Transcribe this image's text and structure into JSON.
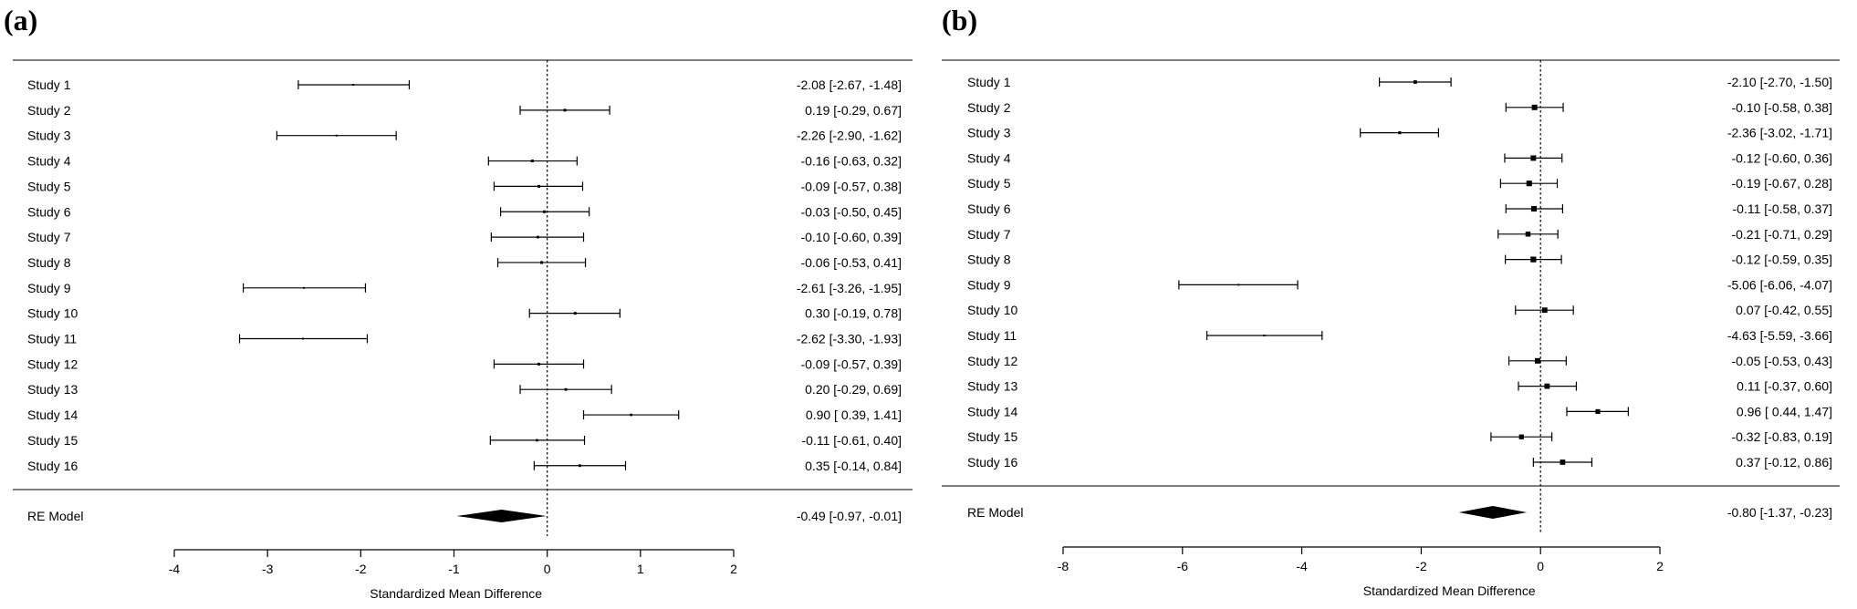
{
  "chart_data": [
    {
      "type": "forest",
      "panel_label": "(a)",
      "xlabel": "Standardized Mean Difference",
      "xlim": [
        -4,
        2
      ],
      "xticks": [
        -4,
        -3,
        -2,
        -1,
        0,
        1,
        2
      ],
      "reference_line": 0,
      "studies": [
        {
          "label": "Study 1",
          "est": -2.08,
          "lo": -2.67,
          "hi": -1.48,
          "text": "-2.08 [-2.67, -1.48]"
        },
        {
          "label": "Study 2",
          "est": 0.19,
          "lo": -0.29,
          "hi": 0.67,
          "text": "0.19 [-0.29,  0.67]"
        },
        {
          "label": "Study 3",
          "est": -2.26,
          "lo": -2.9,
          "hi": -1.62,
          "text": "-2.26 [-2.90, -1.62]"
        },
        {
          "label": "Study 4",
          "est": -0.16,
          "lo": -0.63,
          "hi": 0.32,
          "text": "-0.16 [-0.63,  0.32]"
        },
        {
          "label": "Study 5",
          "est": -0.09,
          "lo": -0.57,
          "hi": 0.38,
          "text": "-0.09 [-0.57,  0.38]"
        },
        {
          "label": "Study 6",
          "est": -0.03,
          "lo": -0.5,
          "hi": 0.45,
          "text": "-0.03 [-0.50,  0.45]"
        },
        {
          "label": "Study 7",
          "est": -0.1,
          "lo": -0.6,
          "hi": 0.39,
          "text": "-0.10 [-0.60,  0.39]"
        },
        {
          "label": "Study 8",
          "est": -0.06,
          "lo": -0.53,
          "hi": 0.41,
          "text": "-0.06 [-0.53,  0.41]"
        },
        {
          "label": "Study 9",
          "est": -2.61,
          "lo": -3.26,
          "hi": -1.95,
          "text": "-2.61 [-3.26, -1.95]"
        },
        {
          "label": "Study 10",
          "est": 0.3,
          "lo": -0.19,
          "hi": 0.78,
          "text": "0.30 [-0.19,  0.78]"
        },
        {
          "label": "Study 11",
          "est": -2.62,
          "lo": -3.3,
          "hi": -1.93,
          "text": "-2.62 [-3.30, -1.93]"
        },
        {
          "label": "Study 12",
          "est": -0.09,
          "lo": -0.57,
          "hi": 0.39,
          "text": "-0.09 [-0.57,  0.39]"
        },
        {
          "label": "Study 13",
          "est": 0.2,
          "lo": -0.29,
          "hi": 0.69,
          "text": "0.20 [-0.29,  0.69]"
        },
        {
          "label": "Study 14",
          "est": 0.9,
          "lo": 0.39,
          "hi": 1.41,
          "text": "0.90 [ 0.39,  1.41]"
        },
        {
          "label": "Study 15",
          "est": -0.11,
          "lo": -0.61,
          "hi": 0.4,
          "text": "-0.11 [-0.61,  0.40]"
        },
        {
          "label": "Study 16",
          "est": 0.35,
          "lo": -0.14,
          "hi": 0.84,
          "text": "0.35 [-0.14,  0.84]"
        }
      ],
      "summary": {
        "label": "RE Model",
        "est": -0.49,
        "lo": -0.97,
        "hi": -0.01,
        "text": "-0.49 [-0.97, -0.01]"
      }
    },
    {
      "type": "forest",
      "panel_label": "(b)",
      "xlabel": "Standardized Mean Difference",
      "xlim": [
        -8,
        2
      ],
      "xticks": [
        -8,
        -6,
        -4,
        -2,
        0,
        2
      ],
      "reference_line": 0,
      "studies": [
        {
          "label": "Study 1",
          "est": -2.1,
          "lo": -2.7,
          "hi": -1.5,
          "text": "-2.10 [-2.70, -1.50]"
        },
        {
          "label": "Study 2",
          "est": -0.1,
          "lo": -0.58,
          "hi": 0.38,
          "text": "-0.10 [-0.58,  0.38]"
        },
        {
          "label": "Study 3",
          "est": -2.36,
          "lo": -3.02,
          "hi": -1.71,
          "text": "-2.36 [-3.02, -1.71]"
        },
        {
          "label": "Study 4",
          "est": -0.12,
          "lo": -0.6,
          "hi": 0.36,
          "text": "-0.12 [-0.60,  0.36]"
        },
        {
          "label": "Study 5",
          "est": -0.19,
          "lo": -0.67,
          "hi": 0.28,
          "text": "-0.19 [-0.67,  0.28]"
        },
        {
          "label": "Study 6",
          "est": -0.11,
          "lo": -0.58,
          "hi": 0.37,
          "text": "-0.11 [-0.58,  0.37]"
        },
        {
          "label": "Study 7",
          "est": -0.21,
          "lo": -0.71,
          "hi": 0.29,
          "text": "-0.21 [-0.71,  0.29]"
        },
        {
          "label": "Study 8",
          "est": -0.12,
          "lo": -0.59,
          "hi": 0.35,
          "text": "-0.12 [-0.59,  0.35]"
        },
        {
          "label": "Study 9",
          "est": -5.06,
          "lo": -6.06,
          "hi": -4.07,
          "text": "-5.06 [-6.06, -4.07]"
        },
        {
          "label": "Study 10",
          "est": 0.07,
          "lo": -0.42,
          "hi": 0.55,
          "text": "0.07 [-0.42,  0.55]"
        },
        {
          "label": "Study 11",
          "est": -4.63,
          "lo": -5.59,
          "hi": -3.66,
          "text": "-4.63 [-5.59, -3.66]"
        },
        {
          "label": "Study 12",
          "est": -0.05,
          "lo": -0.53,
          "hi": 0.43,
          "text": "-0.05 [-0.53,  0.43]"
        },
        {
          "label": "Study 13",
          "est": 0.11,
          "lo": -0.37,
          "hi": 0.6,
          "text": "0.11 [-0.37,  0.60]"
        },
        {
          "label": "Study 14",
          "est": 0.96,
          "lo": 0.44,
          "hi": 1.47,
          "text": "0.96 [ 0.44,  1.47]"
        },
        {
          "label": "Study 15",
          "est": -0.32,
          "lo": -0.83,
          "hi": 0.19,
          "text": "-0.32 [-0.83,  0.19]"
        },
        {
          "label": "Study 16",
          "est": 0.37,
          "lo": -0.12,
          "hi": 0.86,
          "text": "0.37 [-0.12,  0.86]"
        }
      ],
      "summary": {
        "label": "RE Model",
        "est": -0.8,
        "lo": -1.37,
        "hi": -0.23,
        "text": "-0.80 [-1.37, -0.23]"
      }
    }
  ]
}
